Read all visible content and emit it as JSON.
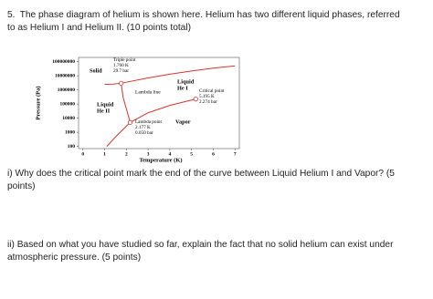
{
  "question": "5. The phase diagram of helium is shown here. Helium has two different liquid phases, referred to as Helium I and Helium II. (10 points total)",
  "chart_data": {
    "type": "line",
    "xlabel": "Temperature (K)",
    "ylabel": "Pressure (Pa)",
    "xlim": [
      -0.2,
      7.2
    ],
    "xticks": [
      0,
      1,
      2,
      3,
      4,
      5,
      6,
      7
    ],
    "ylim": [
      70,
      200000000
    ],
    "ylog": true,
    "yticks": [
      100,
      1000,
      10000,
      100000,
      1000000,
      10000000,
      100000000
    ],
    "series": [
      {
        "color": "#d9342b",
        "x": [
          1.76,
          3,
          4,
          5,
          6,
          7
        ],
        "values": [
          2970000,
          7000000,
          13000000,
          22000000,
          35000000,
          50000000
        ]
      },
      {
        "color": "#d9342b",
        "x": [
          1,
          1.4,
          1.76
        ],
        "values": [
          2500000,
          2600000,
          2970000
        ]
      },
      {
        "color": "#d9342b",
        "x": [
          1.1,
          1.5,
          2.177,
          3,
          4,
          5.195
        ],
        "values": [
          100,
          470,
          5000,
          24000,
          80000,
          227400
        ]
      },
      {
        "name": "Lambda line",
        "color": "#d9342b",
        "x": [
          1.76,
          1.85,
          2.177
        ],
        "values": [
          2970000,
          300000,
          5000
        ]
      }
    ],
    "points": [
      {
        "x": 1.76,
        "y": 2970000,
        "labels": [
          "Triple point",
          "1.760 K",
          "29.7 bar"
        ]
      },
      {
        "x": 5.195,
        "y": 227400,
        "labels": [
          "Critical point",
          "5.195 K",
          "2.274 bar"
        ]
      },
      {
        "x": 2.177,
        "y": 5000,
        "labels": [
          "Lambda point",
          "2.177 K",
          "0.050 bar"
        ]
      }
    ],
    "regions": [
      [
        "Solid"
      ],
      [
        "Liquid",
        "He I"
      ],
      [
        "Liquid",
        "He II"
      ],
      [
        "Vapor"
      ]
    ]
  },
  "subquestions": [
    "i) Why does the critical point mark the end of the curve between Liquid Helium I and Vapor? (5 points)",
    "ii) Based on what you have studied so far, explain the fact that no solid helium can exist under atmospheric pressure. (5 points)"
  ]
}
